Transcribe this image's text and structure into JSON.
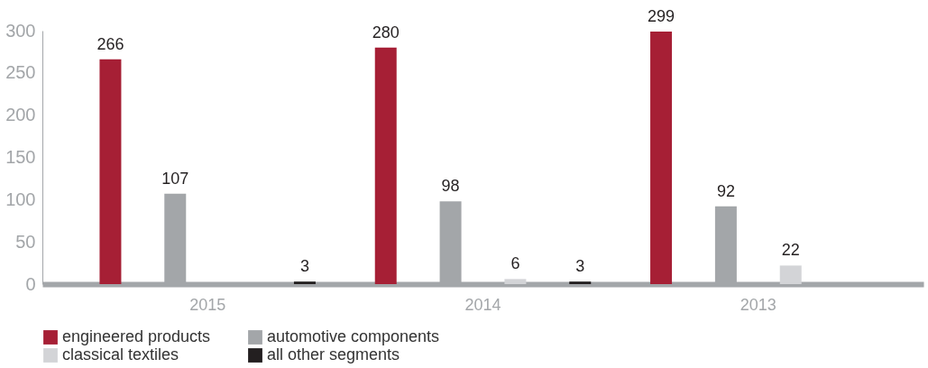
{
  "chart_data": {
    "type": "bar",
    "categories": [
      "2015",
      "2014",
      "2013"
    ],
    "series": [
      {
        "name": "engineered products",
        "color": "#a61f35",
        "values": [
          266,
          280,
          299
        ]
      },
      {
        "name": "automotive components",
        "color": "#a3a6a9",
        "values": [
          107,
          98,
          92
        ]
      },
      {
        "name": "classical textiles",
        "color": "#d3d4d7",
        "values": [
          null,
          6,
          22
        ]
      },
      {
        "name": "all other segments",
        "color": "#231f20",
        "values": [
          3,
          3,
          null
        ]
      }
    ],
    "ylim": [
      0,
      300
    ],
    "yticks": [
      0,
      50,
      100,
      150,
      200,
      250,
      300
    ],
    "grid": false,
    "legend": "bottom",
    "data_labels": true
  }
}
